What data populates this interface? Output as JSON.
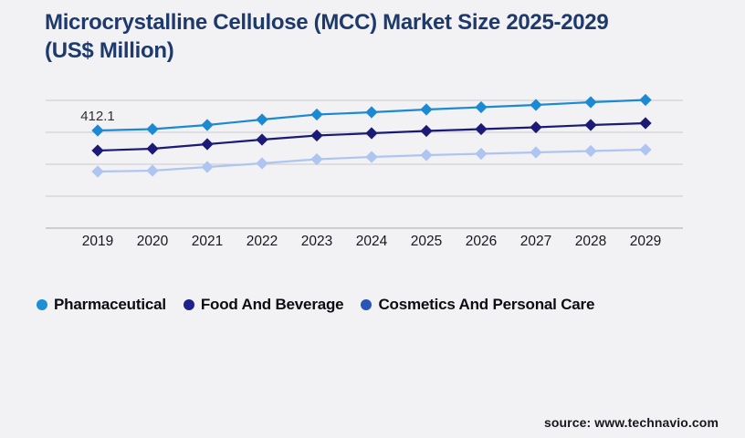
{
  "page": {
    "background_color": "#f2f2f5",
    "source_note": "source: www.technavio.com"
  },
  "title": {
    "line1": "Microcrystalline Cellulose (MCC) Market Size 2025-2029",
    "line2": "(US$ Million)",
    "color": "#1e3a6d"
  },
  "chart_data": {
    "type": "line",
    "title": "Microcrystalline Cellulose (MCC) Market Size 2025-2029 (US$ Million)",
    "xlabel": "",
    "ylabel": "US$ Million",
    "grid": true,
    "y_axis_labels_visible": false,
    "legend_position": "bottom-left",
    "categories": [
      "2019",
      "2020",
      "2021",
      "2022",
      "2023",
      "2024",
      "2025",
      "2026",
      "2027",
      "2028",
      "2029"
    ],
    "series": [
      {
        "name": "Pharmaceutical",
        "line_color": "#1b8ad2",
        "legend_color": "#1e8fd5",
        "values": [
          412.1,
          417.9,
          435.2,
          458.3,
          479.5,
          489.1,
          500.7,
          510.3,
          519.9,
          531.5,
          541.1
        ]
      },
      {
        "name": "Food And Beverage",
        "line_color": "#1b1b76",
        "legend_color": "#20208c",
        "values": [
          327.4,
          335.1,
          354.3,
          373.6,
          390.9,
          400.5,
          410.2,
          417.9,
          425.6,
          435.2,
          442.9
        ]
      },
      {
        "name": "Cosmetics And Personal Care",
        "line_color": "#aec5f1",
        "legend_color": "#2a55b8",
        "values": [
          238.8,
          242.6,
          258.0,
          273.4,
          290.8,
          300.4,
          308.1,
          313.9,
          319.6,
          325.4,
          331.2
        ]
      }
    ],
    "data_label": {
      "series": "Pharmaceutical",
      "category": "2019",
      "text": "412.1"
    }
  },
  "colors": {
    "gridline": "#c9cbd0",
    "axis_line": "#b6b8bd",
    "tick_label": "#16181d",
    "data_label": "#2e2f35",
    "legend_label": "#0b0d12",
    "source_text": "#15181e"
  }
}
